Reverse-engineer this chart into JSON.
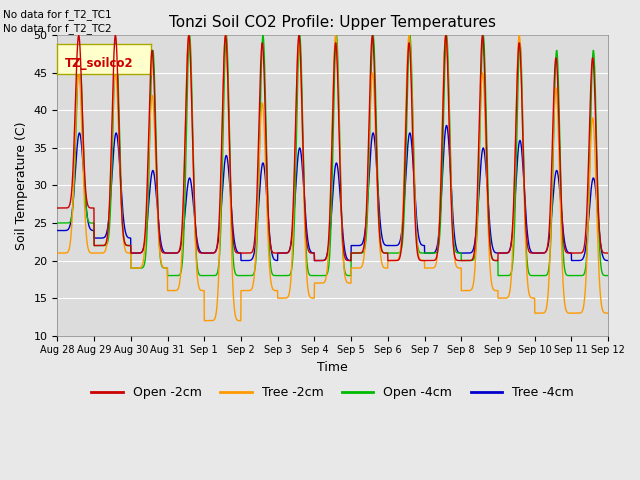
{
  "title": "Tonzi Soil CO2 Profile: Upper Temperatures",
  "ylabel": "Soil Temperature (C)",
  "xlabel": "Time",
  "ylim": [
    10,
    50
  ],
  "n_days": 15,
  "background_color": "#dcdcdc",
  "fig_background": "#e8e8e8",
  "legend_box_label": "TZ_soilco2",
  "no_data_text": [
    "No data for f_T2_TC1",
    "No data for f_T2_TC2"
  ],
  "series": [
    {
      "label": "Open -2cm",
      "color": "#cc0000"
    },
    {
      "label": "Tree -2cm",
      "color": "#ff9900"
    },
    {
      "label": "Open -4cm",
      "color": "#00bb00"
    },
    {
      "label": "Tree -4cm",
      "color": "#0000cc"
    }
  ],
  "tick_dates": [
    "Aug 28",
    "Aug 29",
    "Aug 30",
    "Aug 31",
    "Sep 1",
    "Sep 2",
    "Sep 3",
    "Sep 4",
    "Sep 5",
    "Sep 6",
    "Sep 7",
    "Sep 8",
    "Sep 9",
    "Sep 10",
    "Sep 11",
    "Sep 12"
  ],
  "yticks": [
    10,
    15,
    20,
    25,
    30,
    35,
    40,
    45,
    50
  ],
  "open2_peaks": [
    50,
    50,
    48,
    50,
    50,
    49,
    50,
    49,
    50,
    49,
    50,
    50,
    49,
    47,
    47
  ],
  "open2_troughs": [
    27,
    22,
    21,
    21,
    21,
    21,
    21,
    20,
    21,
    20,
    20,
    20,
    21,
    21,
    21
  ],
  "tree2_peaks": [
    45,
    45,
    42,
    50,
    50,
    41,
    49,
    50,
    45,
    50,
    50,
    45,
    50,
    43,
    39
  ],
  "tree2_troughs": [
    21,
    21,
    19,
    16,
    12,
    16,
    15,
    17,
    19,
    20,
    19,
    16,
    15,
    13,
    13
  ],
  "open4_peaks": [
    48,
    49,
    48,
    50,
    50,
    50,
    50,
    50,
    50,
    50,
    50,
    50,
    49,
    48,
    48
  ],
  "open4_troughs": [
    25,
    22,
    19,
    18,
    18,
    18,
    18,
    18,
    21,
    21,
    21,
    20,
    18,
    18,
    18
  ],
  "tree4_peaks": [
    37,
    37,
    32,
    31,
    34,
    33,
    35,
    33,
    37,
    37,
    38,
    35,
    36,
    32,
    31
  ],
  "tree4_troughs": [
    24,
    23,
    21,
    21,
    21,
    20,
    21,
    20,
    22,
    22,
    21,
    21,
    21,
    21,
    20
  ]
}
